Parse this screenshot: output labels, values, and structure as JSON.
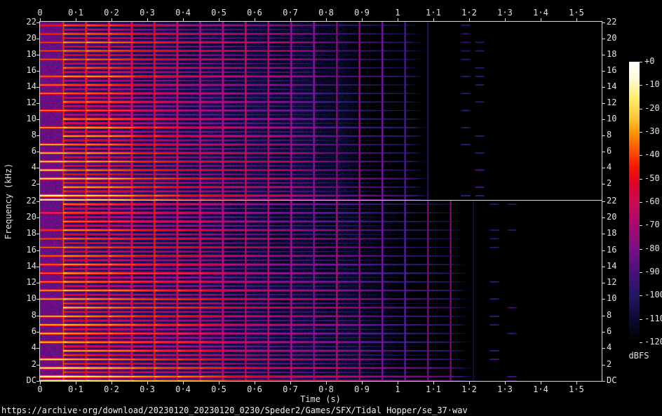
{
  "page": {
    "background": "#000000",
    "url_caption": "https://archive·org/download/20230120_20230120_0230/Speder2/Games/SFX/Tidal Hopper/se_37·wav"
  },
  "chart_data": {
    "type": "heatmap",
    "subtype": "stereo-audio-spectrogram",
    "description": "Two-channel SoX-style spectrogram of a short percussive/harmonic sound effect. Bright harmonic lines (spacing ~1 kHz) start with a noise burst at 0–0.06 s, re-trigger at ~0.064 s intervals (vertical lines), and decay from yellow/orange through red/magenta to dark purple. Upper channel energy ends ~1.05 s with faint echoes near 1.2 s; lower channel ends ~1.17 s with faint echoes near 1.3 s.",
    "xlabel": "Time (s)",
    "ylabel": "Frequency (kHz)",
    "colorbar_unit": "dBFS",
    "x_range_s": [
      0,
      1.571
    ],
    "y_range_khz": [
      0,
      22.05
    ],
    "x_ticks": [
      "0",
      "0·1",
      "0·2",
      "0·3",
      "0·4",
      "0·5",
      "0·6",
      "0·7",
      "0·8",
      "0·9",
      "1",
      "1·1",
      "1·2",
      "1·3",
      "1·4",
      "1·5"
    ],
    "x_tick_values": [
      0,
      0.1,
      0.2,
      0.3,
      0.4,
      0.5,
      0.6,
      0.7,
      0.8,
      0.9,
      1.0,
      1.1,
      1.2,
      1.3,
      1.4,
      1.5
    ],
    "y_ticks": [
      "22",
      "20",
      "18",
      "16",
      "14",
      "12",
      "10",
      "8",
      "6",
      "4",
      "2"
    ],
    "y_tick_values": [
      22,
      20,
      18,
      16,
      14,
      12,
      10,
      8,
      6,
      4,
      2
    ],
    "dc_label": "DC",
    "colorbar_ticks": [
      "+0",
      "-10",
      "-20",
      "-30",
      "-40",
      "-50",
      "-60",
      "-70",
      "-80",
      "-90",
      "-100",
      "-110",
      "-120"
    ],
    "colorbar_values": [
      0,
      -10,
      -20,
      -30,
      -40,
      -50,
      -60,
      -70,
      -80,
      -90,
      -100,
      -110,
      -120
    ],
    "palette_stops": [
      [
        0,
        "#ffffff"
      ],
      [
        -8,
        "#fff8cf"
      ],
      [
        -16,
        "#ffee66"
      ],
      [
        -24,
        "#ffc435"
      ],
      [
        -31,
        "#ff9000"
      ],
      [
        -38,
        "#ff5000"
      ],
      [
        -45,
        "#f51800"
      ],
      [
        -52,
        "#e00028"
      ],
      [
        -60,
        "#cc0a55"
      ],
      [
        -70,
        "#a90870"
      ],
      [
        -80,
        "#7c0e86"
      ],
      [
        -90,
        "#4b107e"
      ],
      [
        -100,
        "#251664"
      ],
      [
        -110,
        "#0b0b34"
      ],
      [
        -120,
        "#000000"
      ]
    ],
    "channels": [
      {
        "name": "upper-panel",
        "sustain_s": 1.04,
        "echoes_s": [
          1.19,
          1.23
        ],
        "seed": 11
      },
      {
        "name": "lower-panel",
        "sustain_s": 1.17,
        "echoes_s": [
          1.27,
          1.32
        ],
        "seed": 29
      }
    ],
    "synth": {
      "pixels_per_second": 510,
      "f_max_khz": 22.05,
      "harmonic_spacing_khz": 0.527,
      "first_onset_s": 0.0655,
      "onset_period_s": 0.0637,
      "noise_burst_end_s": 0.062,
      "line_base_db": -16,
      "weak_line_penalty_db": -22,
      "freq_tilt_db_per_khz": -0.55,
      "decay_db": 78,
      "decay_power": 1.15,
      "onset_boost_db": 7,
      "vertical_line_db": -36,
      "noise_floor_db": -97
    }
  }
}
